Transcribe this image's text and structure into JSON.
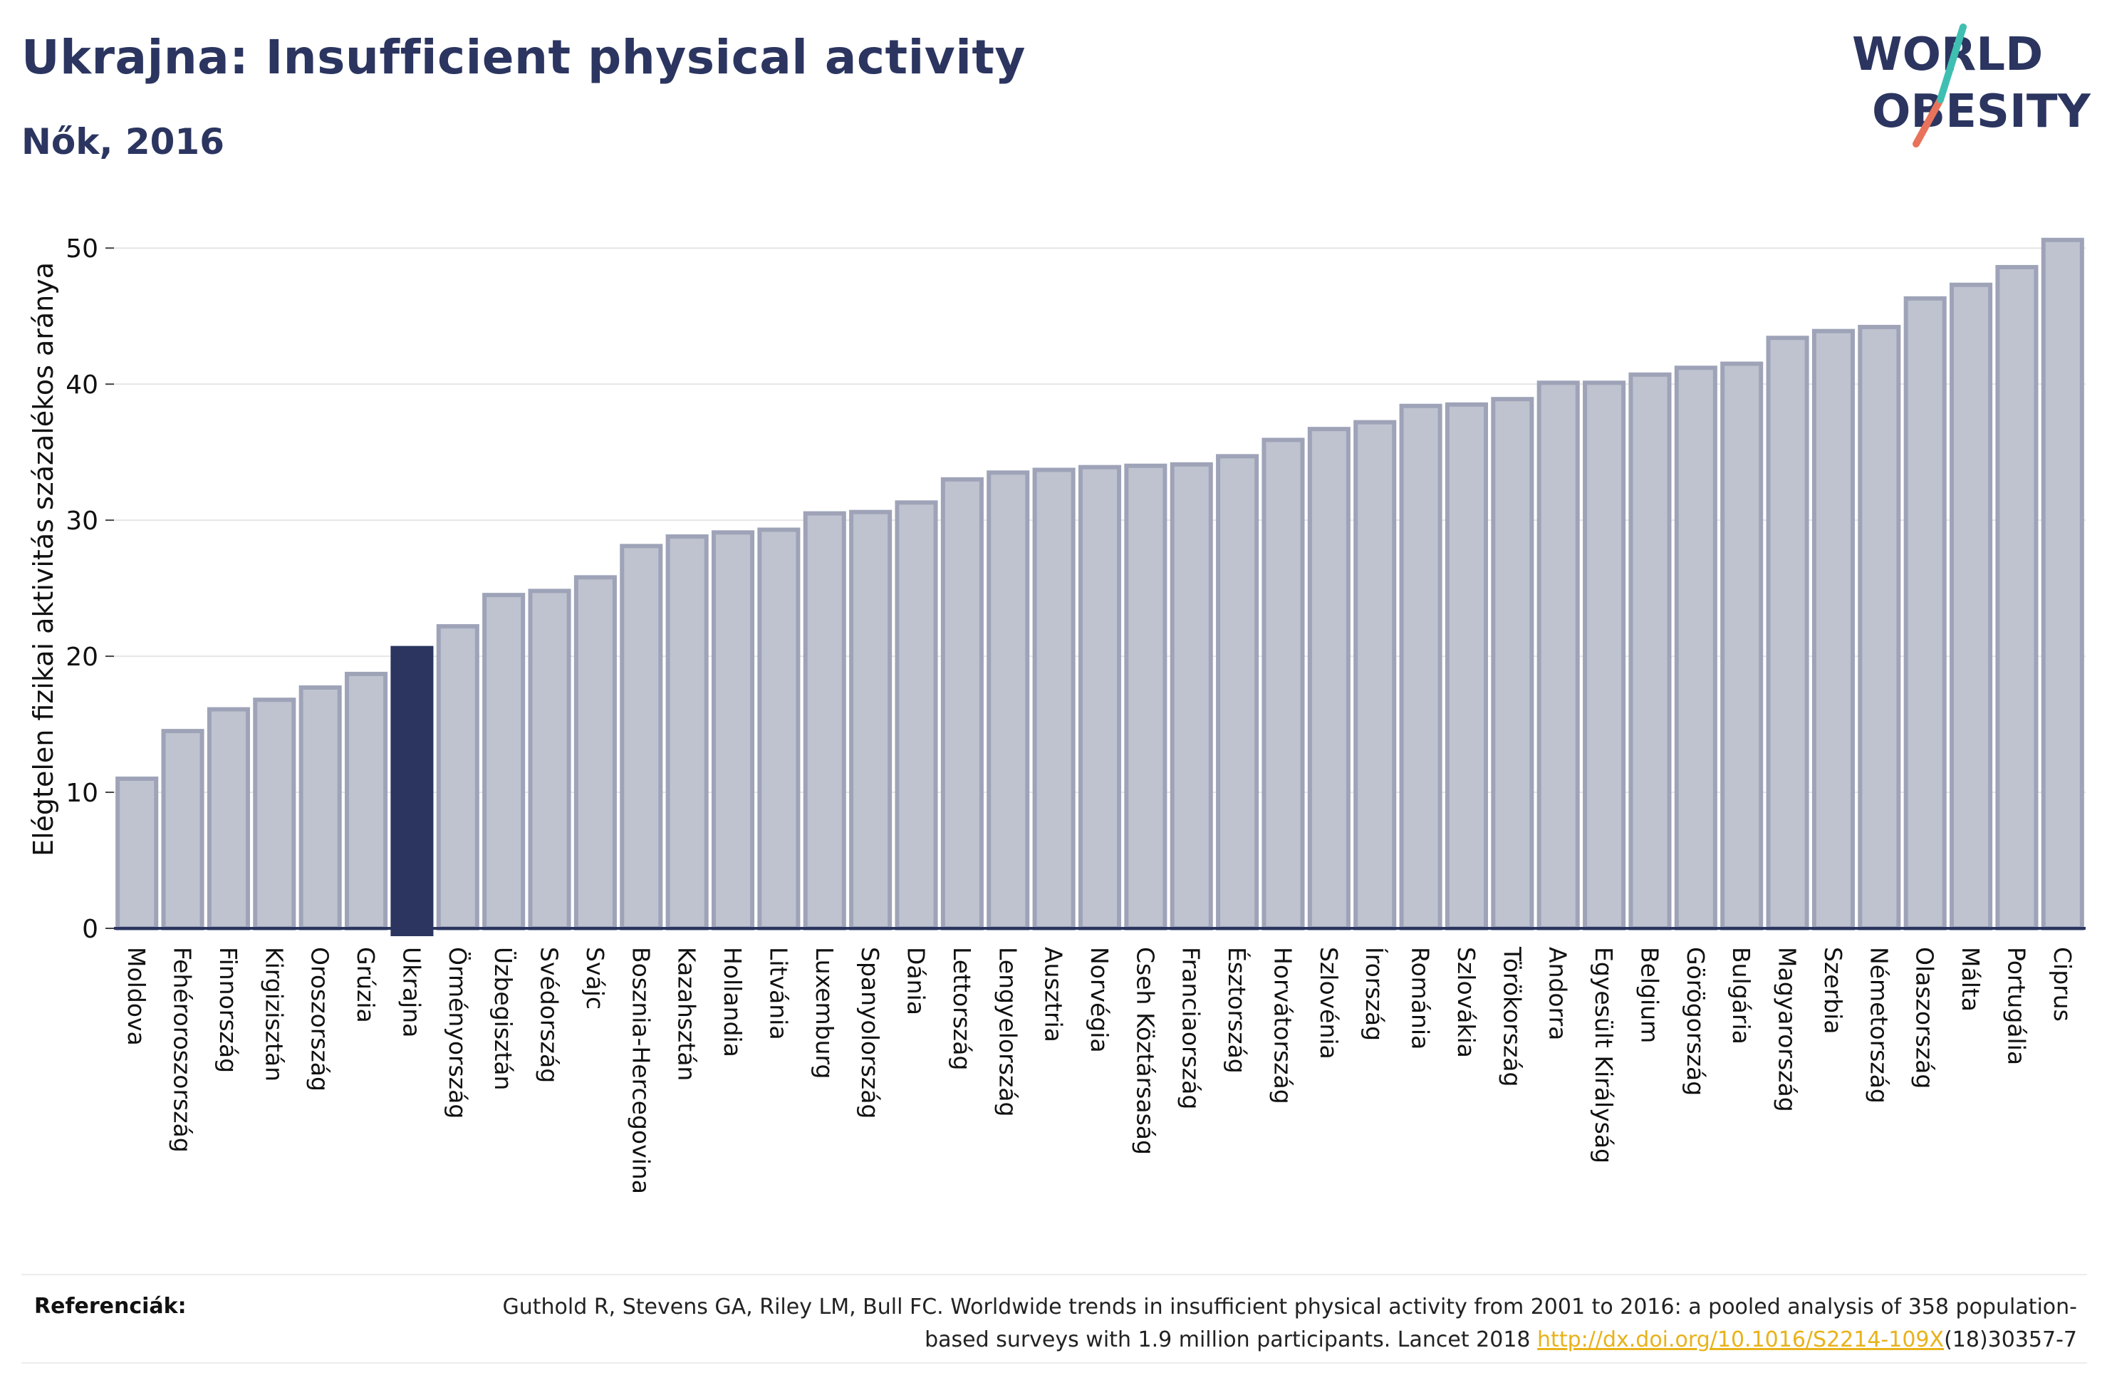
{
  "header": {
    "title": "Ukrajna: Insufficient physical activity",
    "subtitle": "Nők, 2016"
  },
  "logo": {
    "line1": "WORLD",
    "line2": "OBESITY"
  },
  "colors": {
    "bar": "#bfc3cf",
    "bar_border": "#9ea3b8",
    "highlight": "#2b3560",
    "grid": "#e6e6e6",
    "axis": "#2b3560",
    "link": "#e8b21a"
  },
  "chart_data": {
    "type": "bar",
    "title": "Ukrajna: Insufficient physical activity",
    "subtitle": "Nők, 2016",
    "xlabel": "",
    "ylabel": "Elégtelen fizikai aktivitás százalékos aránya",
    "ylim": [
      0,
      52
    ],
    "yticks": [
      0,
      10,
      20,
      30,
      40,
      50
    ],
    "grid": true,
    "highlight": "Ukrajna",
    "categories": [
      "Moldova",
      "Fehéroroszország",
      "Finnország",
      "Kirgizisztán",
      "Oroszország",
      "Grúzia",
      "Ukrajna",
      "Örményország",
      "Üzbegisztán",
      "Svédország",
      "Svájc",
      "Bosznia-Hercegovina",
      "Kazahsztán",
      "Hollandia",
      "Litvánia",
      "Luxemburg",
      "Spanyolország",
      "Dánia",
      "Lettország",
      "Lengyelország",
      "Ausztria",
      "Norvégia",
      "Cseh Köztársaság",
      "Franciaország",
      "Észtország",
      "Horvátország",
      "Szlovénia",
      "Írország",
      "Románia",
      "Szlovákia",
      "Törökország",
      "Andorra",
      "Egyesült Királyság",
      "Belgium",
      "Görögország",
      "Bulgária",
      "Magyarország",
      "Szerbia",
      "Németország",
      "Olaszország",
      "Málta",
      "Portugália",
      "Ciprus"
    ],
    "values": [
      11.0,
      14.5,
      16.1,
      16.8,
      17.7,
      18.7,
      20.6,
      22.2,
      24.5,
      24.8,
      25.8,
      28.1,
      28.8,
      29.1,
      29.3,
      30.5,
      30.6,
      31.3,
      33.0,
      33.5,
      33.7,
      33.9,
      34.0,
      34.1,
      34.7,
      35.9,
      36.7,
      37.2,
      38.4,
      38.5,
      38.9,
      40.1,
      40.1,
      40.7,
      41.2,
      41.5,
      43.4,
      43.9,
      44.2,
      46.3,
      47.3,
      48.6,
      50.6
    ]
  },
  "references": {
    "label": "Referenciák:",
    "text_before": "Guthold R, Stevens GA, Riley LM, Bull FC. Worldwide trends in insufficient physical activity from 2001 to 2016: a pooled analysis of 358 population-based surveys with 1.9 million participants. Lancet 2018 ",
    "link": "http://dx.doi.org/10.1016/S2214-109X",
    "text_after": "(18)30357-7"
  }
}
